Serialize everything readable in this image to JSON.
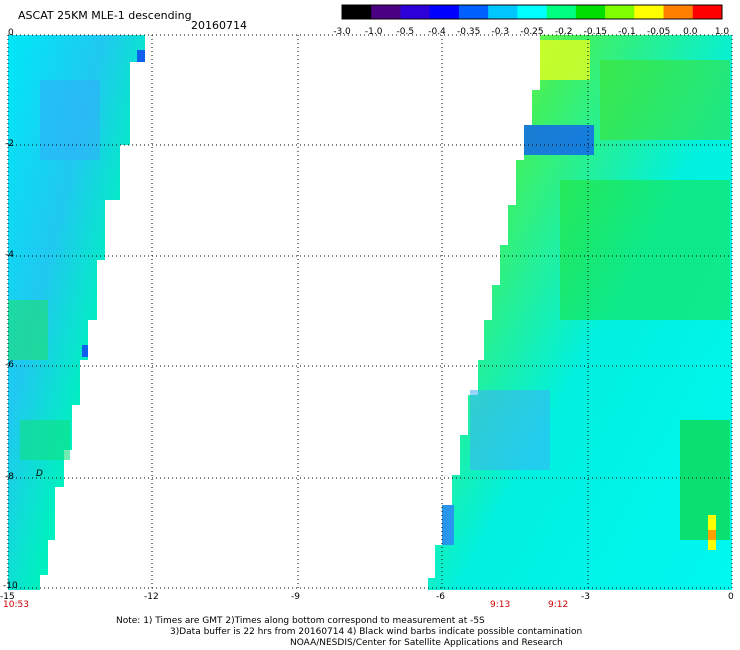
{
  "header": {
    "title": "ASCAT 25KM MLE-1 descending",
    "date": "20160714"
  },
  "colorbar": {
    "labels": [
      "-3.0",
      "-1.0",
      "-0.5",
      "-0.4",
      "-0.35",
      "-0.3",
      "-0.25",
      "-0.2",
      "-0.15",
      "-0.1",
      "-0.05",
      "0.0",
      "1.0"
    ],
    "colors": [
      "#000000",
      "#4b0082",
      "#2e00d8",
      "#0000ff",
      "#0060ff",
      "#00c8ff",
      "#00ffff",
      "#00ff80",
      "#00e000",
      "#80ff00",
      "#ffff00",
      "#ff8000",
      "#ff0000"
    ]
  },
  "axes": {
    "x_ticks": [
      "-15",
      "-12",
      "-9",
      "-6",
      "-3",
      "0"
    ],
    "y_ticks": [
      "0",
      "-2",
      "-4",
      "-6",
      "-8",
      "-10"
    ],
    "top_left_label": "0"
  },
  "swath_times": [
    "10:53",
    "9:13",
    "9:12"
  ],
  "marker": "D",
  "notes": {
    "line1": "Note: 1) Times are GMT 2)Times along bottom correspond to measurement at -5S",
    "line2": "3)Data buffer is 22 hrs from 20160714 4) Black wind barbs indicate possible contamination",
    "line3": "NOAA/NESDIS/Center for Satellite Applications and Research"
  }
}
